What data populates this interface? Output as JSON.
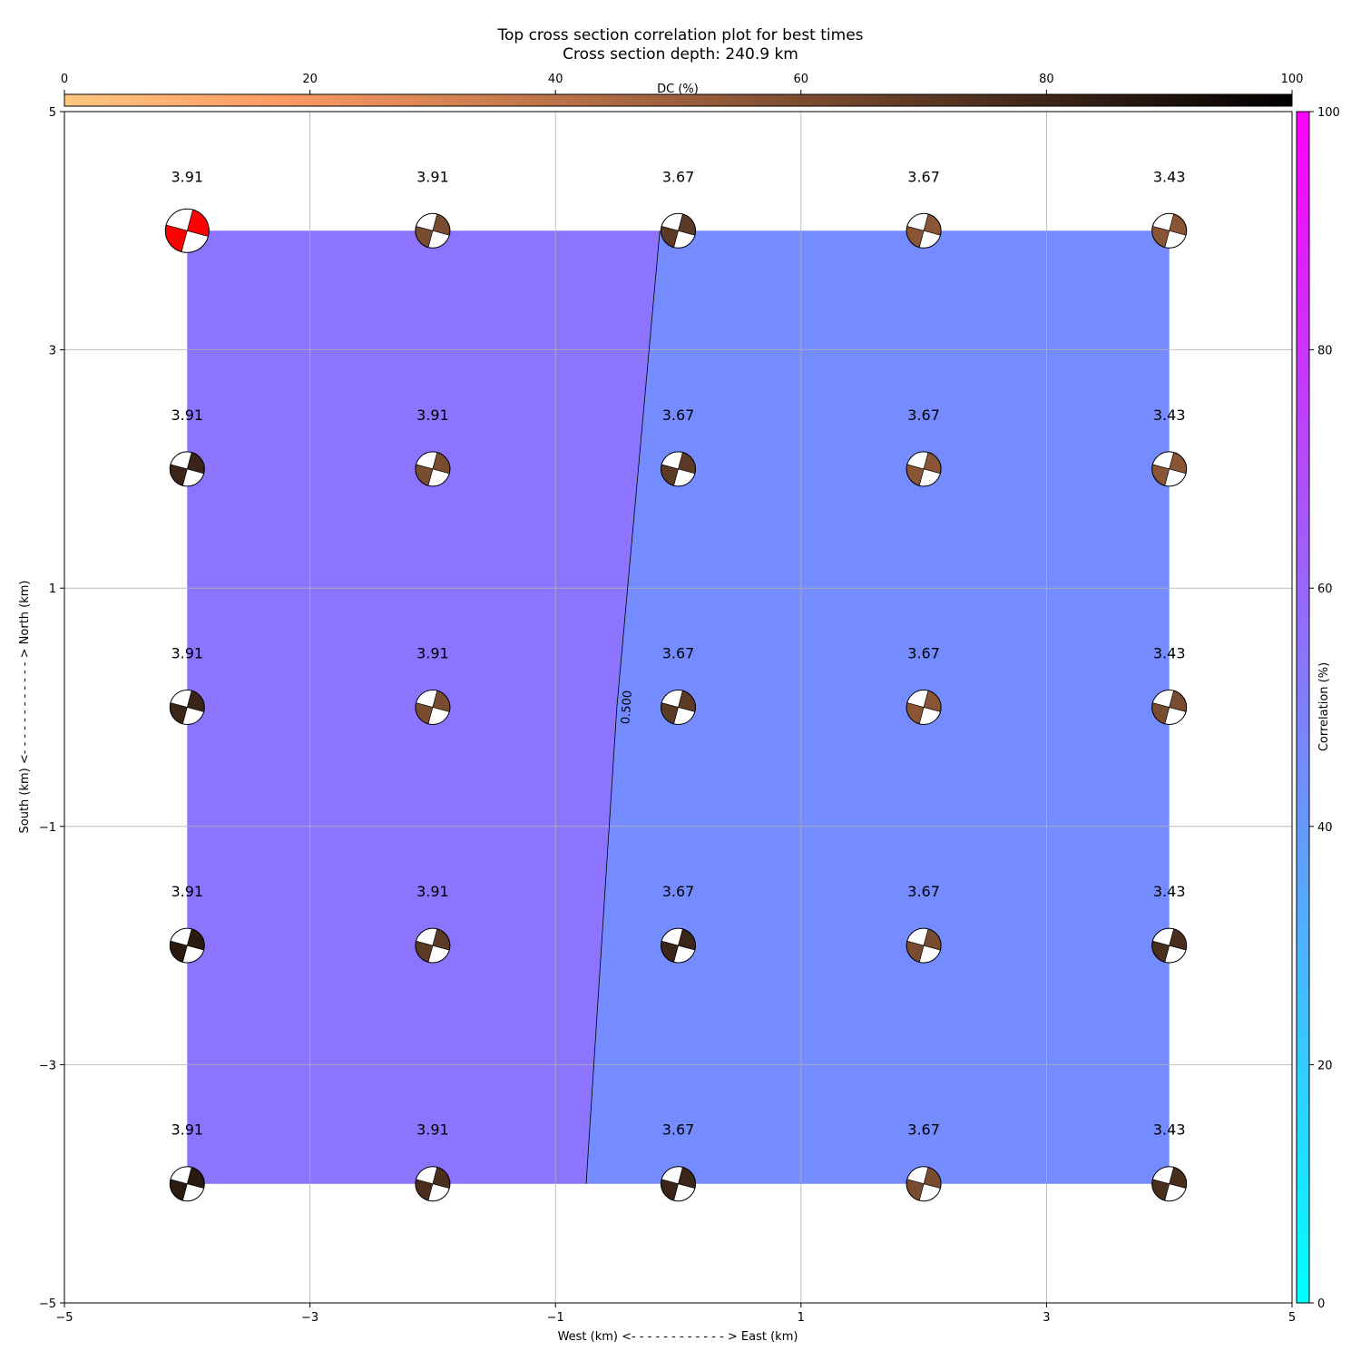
{
  "chart_data": {
    "type": "heatmap",
    "title": "Top cross section correlation plot for best times",
    "subtitle": "Cross section depth: 240.9 km",
    "xlabel": "West (km) <- - - - - - - - - - - - > East (km)",
    "ylabel": "South (km) <- - - - - - - - - - - - > North (km)",
    "xlim": [
      -5,
      5
    ],
    "ylim": [
      -5,
      5
    ],
    "xticks": [
      "−5",
      "−3",
      "−1",
      "1",
      "3",
      "5"
    ],
    "yticks": [
      "−5",
      "−3",
      "−1",
      "1",
      "3",
      "5"
    ],
    "grid": true,
    "x": [
      -4,
      -2,
      0,
      2,
      4
    ],
    "y": [
      4,
      2,
      0,
      -2,
      -4
    ],
    "correlation_regions": [
      {
        "name": "",
        "value": 0.55,
        "color": "#8c74ff"
      },
      {
        "name": "",
        "value": 0.45,
        "color": "#748cff"
      }
    ],
    "contour": {
      "label": "0.500",
      "points": [
        [
          -0.15,
          4
        ],
        [
          -0.5,
          0
        ],
        [
          -0.75,
          -4
        ]
      ]
    },
    "dc_colorbar": {
      "label": "DC (%)",
      "range": [
        0,
        100
      ],
      "ticks": [
        "0",
        "20",
        "40",
        "60",
        "80",
        "100"
      ],
      "colors": [
        "#ffc77f",
        "#ff9c64",
        "#d07f50",
        "#9c5f3c",
        "#684028",
        "#341f14",
        "#000000"
      ]
    },
    "correlation_colorbar": {
      "label": "Correlation (%)",
      "range": [
        0,
        100
      ],
      "ticks": [
        "0",
        "20",
        "40",
        "60",
        "80",
        "100"
      ],
      "colors": [
        "#00ffff",
        "#ff00ff"
      ]
    },
    "moment_tensors": [
      {
        "x": -4,
        "y": 4,
        "value_label": "3.91",
        "color": "#ff0000",
        "highlight": true
      },
      {
        "x": -2,
        "y": 4,
        "value_label": "3.91",
        "color": "#794c30"
      },
      {
        "x": 0,
        "y": 4,
        "value_label": "3.67",
        "color": "#5b3b26"
      },
      {
        "x": 2,
        "y": 4,
        "value_label": "3.67",
        "color": "#8a5535"
      },
      {
        "x": 4,
        "y": 4,
        "value_label": "3.43",
        "color": "#8a5535"
      },
      {
        "x": -4,
        "y": 2,
        "value_label": "3.91",
        "color": "#3a2518"
      },
      {
        "x": -2,
        "y": 2,
        "value_label": "3.91",
        "color": "#794c30"
      },
      {
        "x": 0,
        "y": 2,
        "value_label": "3.67",
        "color": "#5b3b26"
      },
      {
        "x": 2,
        "y": 2,
        "value_label": "3.67",
        "color": "#8a5535"
      },
      {
        "x": 4,
        "y": 2,
        "value_label": "3.43",
        "color": "#8a5535"
      },
      {
        "x": -4,
        "y": 0,
        "value_label": "3.91",
        "color": "#3a2518"
      },
      {
        "x": -2,
        "y": 0,
        "value_label": "3.91",
        "color": "#794c30"
      },
      {
        "x": 0,
        "y": 0,
        "value_label": "3.67",
        "color": "#5b3b26"
      },
      {
        "x": 2,
        "y": 0,
        "value_label": "3.67",
        "color": "#8a5535"
      },
      {
        "x": 4,
        "y": 0,
        "value_label": "3.43",
        "color": "#794c30"
      },
      {
        "x": -4,
        "y": -2,
        "value_label": "3.91",
        "color": "#2a1a10"
      },
      {
        "x": -2,
        "y": -2,
        "value_label": "3.91",
        "color": "#5b3b26"
      },
      {
        "x": 0,
        "y": -2,
        "value_label": "3.67",
        "color": "#3a2518"
      },
      {
        "x": 2,
        "y": -2,
        "value_label": "3.67",
        "color": "#794c30"
      },
      {
        "x": 4,
        "y": -2,
        "value_label": "3.43",
        "color": "#4a2f1e"
      },
      {
        "x": -4,
        "y": -4,
        "value_label": "3.91",
        "color": "#2a1a10"
      },
      {
        "x": -2,
        "y": -4,
        "value_label": "3.91",
        "color": "#4a2f1e"
      },
      {
        "x": 0,
        "y": -4,
        "value_label": "3.67",
        "color": "#3a2518"
      },
      {
        "x": 2,
        "y": -4,
        "value_label": "3.67",
        "color": "#794c30"
      },
      {
        "x": 4,
        "y": -4,
        "value_label": "3.43",
        "color": "#4a2f1e"
      }
    ]
  }
}
